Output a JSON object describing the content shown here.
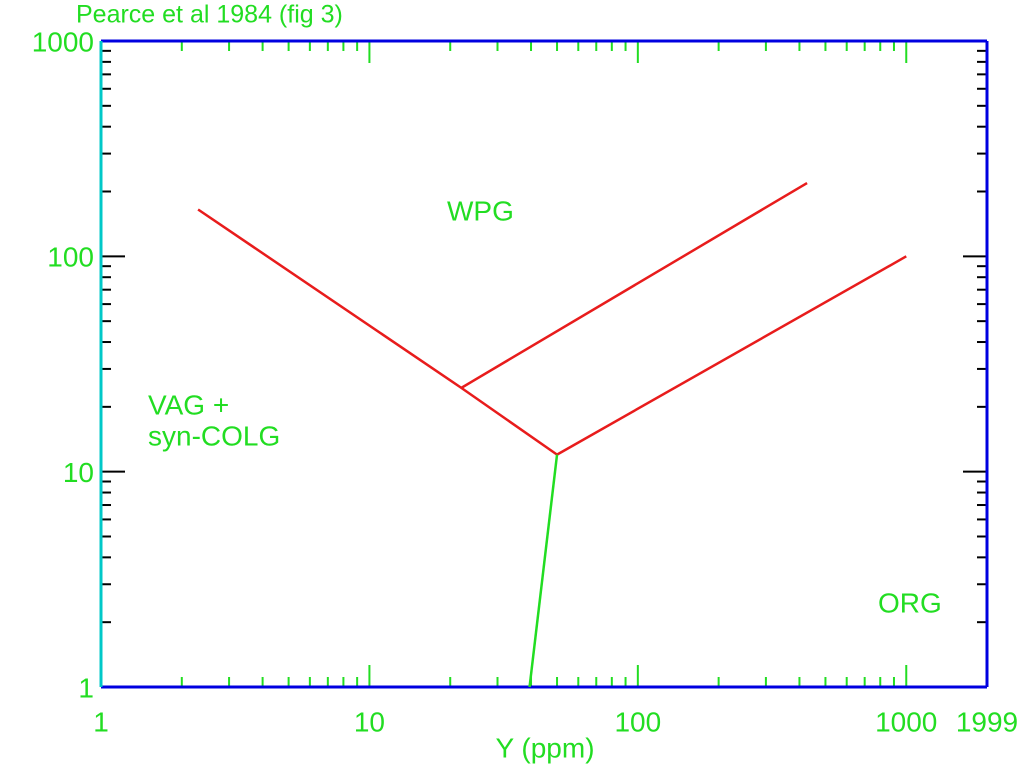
{
  "chart_data": {
    "type": "line",
    "title": "Pearce et al 1984 (fig 3)",
    "x_label": "Y  (ppm)",
    "log_x": true,
    "log_y": true,
    "xlim": [
      1,
      1999
    ],
    "ylim": [
      1,
      1000
    ],
    "xticks": [
      1,
      10,
      100,
      1000,
      1999
    ],
    "yticks": [
      1,
      10,
      100,
      1000
    ],
    "series": [
      {
        "color": "#e81c1c",
        "x": [
          2.3,
          22,
          50
        ],
        "values": [
          165,
          24.5,
          12
        ]
      },
      {
        "color": "#e81c1c",
        "x": [
          22,
          427
        ],
        "values": [
          24.5,
          219
        ]
      },
      {
        "color": "#e81c1c",
        "x": [
          50,
          1000
        ],
        "values": [
          12,
          100
        ]
      },
      {
        "color": "#22dd22",
        "x": [
          50,
          39.5
        ],
        "values": [
          12,
          1
        ]
      }
    ],
    "annotations": [
      "WPG",
      "VAG +",
      "syn-COLG",
      "ORG"
    ]
  }
}
